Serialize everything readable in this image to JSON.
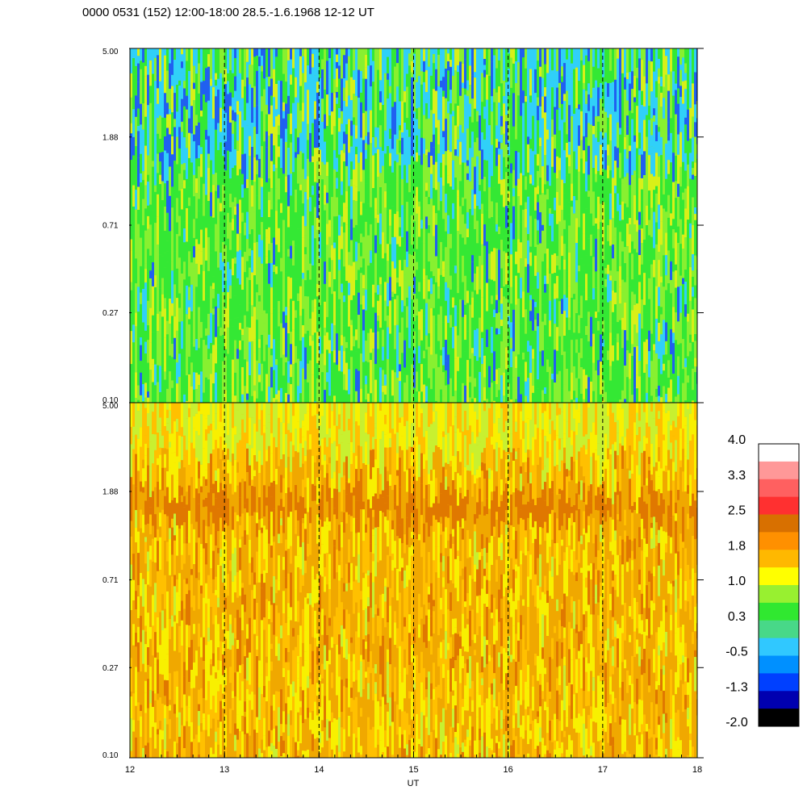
{
  "title": "0000 0531 (152) 12:00-18:00 28.5.-1.6.1968  12-12 UT",
  "chart_data": {
    "type": "heatmap",
    "panels": [
      {
        "name": "",
        "yticks": [
          "5.00",
          "1.88",
          "0.71",
          "0.27",
          "0.10"
        ],
        "ylim": [
          0.1,
          5.0
        ],
        "yscale": "log",
        "dominant_colors": [
          "#34e834",
          "#88f030",
          "#d8f018",
          "#30d0f8",
          "#2060f0"
        ]
      },
      {
        "name": "",
        "yticks": [
          "5.00",
          "1.88",
          "0.71",
          "0.27",
          "0.10"
        ],
        "ylim": [
          0.1,
          5.0
        ],
        "yscale": "log",
        "dominant_colors": [
          "#f0a800",
          "#ffc000",
          "#f8f000",
          "#e07800",
          "#c8f030"
        ]
      }
    ],
    "x": {
      "label": "UT",
      "ticks": [
        "12",
        "13",
        "14",
        "15",
        "16",
        "17",
        "18"
      ],
      "range": [
        12,
        18
      ]
    },
    "dashed_gridlines_at": [
      13,
      14,
      15,
      16,
      17
    ],
    "colorbar": {
      "labels": [
        "4.0",
        "3.3",
        "2.5",
        "1.8",
        "1.0",
        "0.3",
        "-0.5",
        "-1.3",
        "-2.0"
      ],
      "range": [
        -2.0,
        4.0
      ],
      "colors": [
        "#ffffff",
        "#ff9898",
        "#ff6060",
        "#ff3030",
        "#d87000",
        "#ff9000",
        "#ffb800",
        "#ffff00",
        "#98f030",
        "#30e830",
        "#48d888",
        "#30c8ff",
        "#0090ff",
        "#0040ff",
        "#0000b0",
        "#000000"
      ]
    }
  }
}
